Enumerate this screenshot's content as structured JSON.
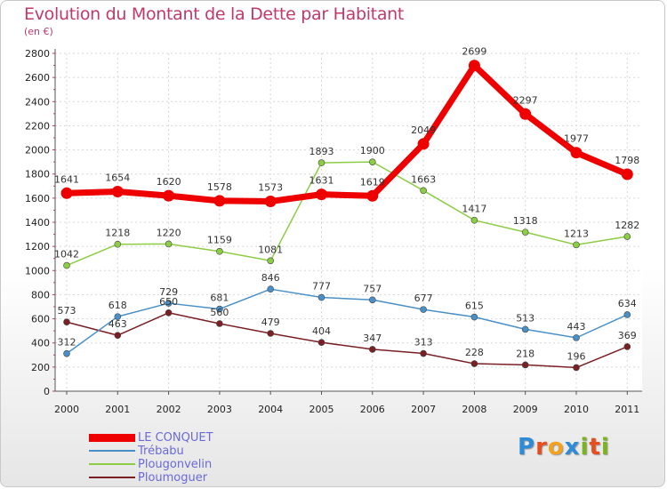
{
  "title": "Evolution du Montant de la Dette par Habitant",
  "subtitle": "(en €)",
  "logo": [
    "P",
    "r",
    "o",
    "x",
    "i",
    "t",
    "i"
  ],
  "logo_colors": [
    "#2e8bd6",
    "#e94d1e",
    "#f3a21c",
    "#2e8bd6",
    "#7ab51d",
    "#e94d1e",
    "#7ab51d"
  ],
  "chart_data": {
    "type": "line",
    "x": [
      "2000",
      "2001",
      "2002",
      "2003",
      "2004",
      "2005",
      "2006",
      "2007",
      "2008",
      "2009",
      "2010",
      "2011"
    ],
    "yticks": [
      "0",
      "200",
      "400",
      "600",
      "800",
      "1000",
      "1200",
      "1400",
      "1600",
      "1800",
      "2000",
      "2200",
      "2400",
      "2600",
      "2800"
    ],
    "ylim": [
      0,
      2800
    ],
    "grid": true,
    "legend_position": "bottom-left",
    "series": [
      {
        "name": "LE CONQUET",
        "color": "#ee0000",
        "values": [
          1641,
          1654,
          1620,
          1578,
          1573,
          1631,
          1619,
          2049,
          2699,
          2297,
          1977,
          1798
        ],
        "labels": [
          "1641",
          "1654",
          "1620",
          "1578",
          "1573",
          "1631",
          "1619",
          "2049",
          "2699",
          "2297",
          "1977",
          "1798"
        ]
      },
      {
        "name": "Trébabu",
        "color": "#4a90c8",
        "values": [
          312,
          618,
          729,
          681,
          846,
          777,
          757,
          677,
          615,
          513,
          443,
          634
        ],
        "labels": [
          "312",
          "618",
          "729",
          "681",
          "846",
          "777",
          "757",
          "677",
          "615",
          "513",
          "443",
          "634"
        ]
      },
      {
        "name": "Plougonvelin",
        "color": "#8ccd44",
        "values": [
          1042,
          1218,
          1220,
          1159,
          1081,
          1893,
          1900,
          1663,
          1417,
          1318,
          1213,
          1282
        ],
        "labels": [
          "1042",
          "1218",
          "1220",
          "1159",
          "1081",
          "1893",
          "1900",
          "1663",
          "1417",
          "1318",
          "1213",
          "1282"
        ]
      },
      {
        "name": "Ploumoguer",
        "color": "#7a1f24",
        "values": [
          573,
          463,
          650,
          560,
          479,
          404,
          347,
          313,
          228,
          218,
          196,
          369
        ],
        "labels": [
          "573",
          "463",
          "650",
          "560",
          "479",
          "404",
          "347",
          "313",
          "228",
          "218",
          "196",
          "369"
        ]
      }
    ]
  }
}
